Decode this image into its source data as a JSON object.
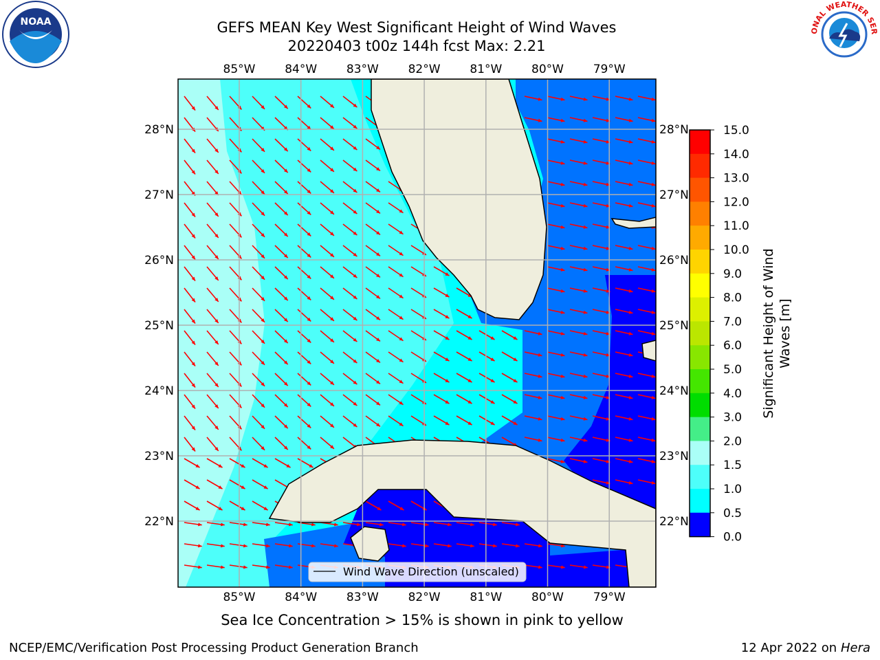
{
  "title": {
    "line1": "GEFS MEAN Key West Significant Height of Wind Waves",
    "line2": "20220403 t00z 144h fcst   Max: 2.21"
  },
  "map": {
    "lon_ticks": [
      "85°W",
      "84°W",
      "83°W",
      "82°W",
      "81°W",
      "80°W",
      "79°W"
    ],
    "lat_ticks": [
      "28°N",
      "27°N",
      "26°N",
      "25°N",
      "24°N",
      "23°N",
      "22°N"
    ],
    "legend_label": "Wind Wave Direction (unscaled)",
    "colors": {
      "land": "#efeedd",
      "ocean_0_0_5": "#0000ff",
      "ocean_0_5_1_0": "#0073ff",
      "ocean_1_0_1_5": "#00ffff",
      "ocean_1_5_2_0": "#4dfffa",
      "ocean_2_0_3_0": "#aafff7",
      "arrow": "#ff0000",
      "grid": "#b0b0b0"
    }
  },
  "colorbar": {
    "label_line1": "Significant Height of Wind",
    "label_line2": "Waves [m]",
    "ticks": [
      "15.0",
      "14.0",
      "13.0",
      "12.0",
      "11.0",
      "10.0",
      "9.0",
      "8.0",
      "7.0",
      "6.0",
      "5.0",
      "4.0",
      "3.0",
      "2.0",
      "1.5",
      "1.0",
      "0.5",
      "0.0"
    ],
    "colors": [
      "#ff0000",
      "#ff2a00",
      "#ff5500",
      "#ff8000",
      "#ffaa00",
      "#ffd400",
      "#ffff00",
      "#ddf000",
      "#bbe600",
      "#88e600",
      "#44e600",
      "#00dd00",
      "#44ee88",
      "#aafff7",
      "#4dfffa",
      "#00ffff",
      "#0073ff",
      "#0000ff"
    ]
  },
  "logos": {
    "left": "NOAA",
    "right": "NATIONAL WEATHER SERVICE"
  },
  "caption": "Sea Ice Concentration > 15% is shown in pink to yellow",
  "footer": {
    "left": "NCEP/EMC/Verification Post Processing Product Generation Branch",
    "right_date": "12 Apr 2022 on ",
    "right_host": "Hera"
  }
}
